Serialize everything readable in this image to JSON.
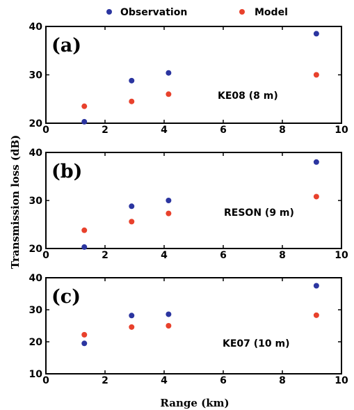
{
  "legend": [
    {
      "label": "Observation",
      "color": "#2b35a0"
    },
    {
      "label": "Model",
      "color": "#e8412c"
    }
  ],
  "xlabel": "Range (km)",
  "ylabel": "Transmission loss (dB)",
  "chart_data": [
    {
      "type": "scatter",
      "panel_label": "(a)",
      "annotation": "KE08 (8 m)",
      "xlim": [
        0,
        10
      ],
      "ylim": [
        20,
        40
      ],
      "xticks": [
        0,
        2,
        4,
        6,
        8,
        10
      ],
      "yticks": [
        20,
        30,
        40
      ],
      "grid": false,
      "series": [
        {
          "name": "Observation",
          "x": [
            1.3,
            2.9,
            4.15,
            9.15
          ],
          "y": [
            20.3,
            28.8,
            30.4,
            38.5
          ]
        },
        {
          "name": "Model",
          "x": [
            1.3,
            2.9,
            4.15,
            9.15
          ],
          "y": [
            23.5,
            24.5,
            26.0,
            30.0
          ]
        }
      ]
    },
    {
      "type": "scatter",
      "panel_label": "(b)",
      "annotation": "RESON (9 m)",
      "xlim": [
        0,
        10
      ],
      "ylim": [
        20,
        40
      ],
      "xticks": [
        0,
        2,
        4,
        6,
        8,
        10
      ],
      "yticks": [
        20,
        30,
        40
      ],
      "grid": false,
      "series": [
        {
          "name": "Observation",
          "x": [
            1.3,
            2.9,
            4.15,
            9.15
          ],
          "y": [
            20.3,
            28.8,
            30.0,
            38.0
          ]
        },
        {
          "name": "Model",
          "x": [
            1.3,
            2.9,
            4.15,
            9.15
          ],
          "y": [
            23.8,
            25.6,
            27.3,
            30.8
          ]
        }
      ]
    },
    {
      "type": "scatter",
      "panel_label": "(c)",
      "annotation": "KE07 (10 m)",
      "xlim": [
        0,
        10
      ],
      "ylim": [
        10,
        40
      ],
      "xticks": [
        0,
        2,
        4,
        6,
        8,
        10
      ],
      "yticks": [
        10,
        20,
        30,
        40
      ],
      "grid": false,
      "series": [
        {
          "name": "Observation",
          "x": [
            1.3,
            2.9,
            4.15,
            9.15
          ],
          "y": [
            19.5,
            28.2,
            28.6,
            37.5
          ]
        },
        {
          "name": "Model",
          "x": [
            1.3,
            2.9,
            4.15,
            9.15
          ],
          "y": [
            22.2,
            24.6,
            25.0,
            28.3
          ]
        }
      ]
    }
  ]
}
